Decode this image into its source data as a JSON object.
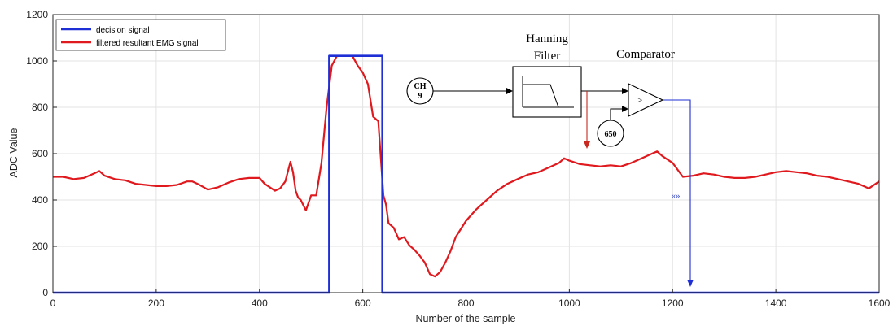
{
  "chart_data": {
    "type": "line",
    "xlabel": "Number of the sample",
    "ylabel": "ADC Value",
    "xlim": [
      0,
      1600
    ],
    "ylim": [
      0,
      1200
    ],
    "x_ticks": [
      "0",
      "200",
      "400",
      "600",
      "800",
      "1000",
      "1200",
      "1400",
      "1600"
    ],
    "y_ticks": [
      "0",
      "200",
      "400",
      "600",
      "800",
      "1000",
      "1200"
    ],
    "grid": true,
    "legend_position": "top-left",
    "series": [
      {
        "name": "decision signal",
        "color": "#1f2fd6",
        "x": [
          0,
          535,
          535,
          638,
          638,
          1600
        ],
        "y": [
          0,
          0,
          1022,
          1022,
          0,
          0
        ]
      },
      {
        "name": "filtered resultant EMG signal",
        "color": "#e0191e",
        "x": [
          0,
          20,
          40,
          60,
          80,
          90,
          100,
          120,
          140,
          160,
          180,
          200,
          220,
          240,
          260,
          270,
          280,
          300,
          320,
          340,
          360,
          380,
          400,
          410,
          420,
          430,
          440,
          450,
          460,
          465,
          470,
          475,
          480,
          490,
          500,
          510,
          520,
          530,
          540,
          550,
          560,
          570,
          580,
          590,
          600,
          610,
          620,
          630,
          640,
          645,
          650,
          660,
          670,
          680,
          690,
          700,
          710,
          720,
          730,
          740,
          750,
          760,
          770,
          780,
          800,
          820,
          840,
          860,
          880,
          900,
          920,
          940,
          960,
          980,
          990,
          1000,
          1020,
          1040,
          1060,
          1080,
          1100,
          1120,
          1140,
          1160,
          1170,
          1180,
          1200,
          1220,
          1240,
          1260,
          1280,
          1300,
          1320,
          1340,
          1360,
          1380,
          1400,
          1420,
          1440,
          1460,
          1480,
          1500,
          1520,
          1540,
          1560,
          1580,
          1600
        ],
        "y": [
          500,
          500,
          490,
          495,
          515,
          525,
          505,
          490,
          485,
          470,
          465,
          460,
          460,
          465,
          480,
          480,
          470,
          445,
          455,
          475,
          490,
          495,
          495,
          470,
          455,
          440,
          450,
          480,
          565,
          520,
          440,
          410,
          400,
          355,
          420,
          420,
          560,
          800,
          980,
          1022,
          1022,
          1022,
          1022,
          980,
          950,
          900,
          760,
          740,
          420,
          380,
          300,
          280,
          230,
          240,
          205,
          185,
          160,
          130,
          80,
          70,
          90,
          130,
          180,
          240,
          310,
          360,
          400,
          440,
          470,
          490,
          510,
          520,
          540,
          560,
          580,
          570,
          555,
          550,
          545,
          550,
          545,
          560,
          580,
          600,
          610,
          590,
          560,
          500,
          505,
          515,
          510,
          500,
          495,
          495,
          500,
          510,
          520,
          525,
          520,
          515,
          505,
          500,
          490,
          480,
          470,
          450,
          480
        ]
      }
    ],
    "annotations": {
      "input_label_line1": "CH",
      "input_label_line2": "9",
      "filter_label_line1": "Hanning",
      "filter_label_line2": "Filter",
      "comparator_label": "Comparator",
      "comparator_symbol": ">",
      "threshold_label": "650",
      "quote_mark": "«»"
    }
  }
}
